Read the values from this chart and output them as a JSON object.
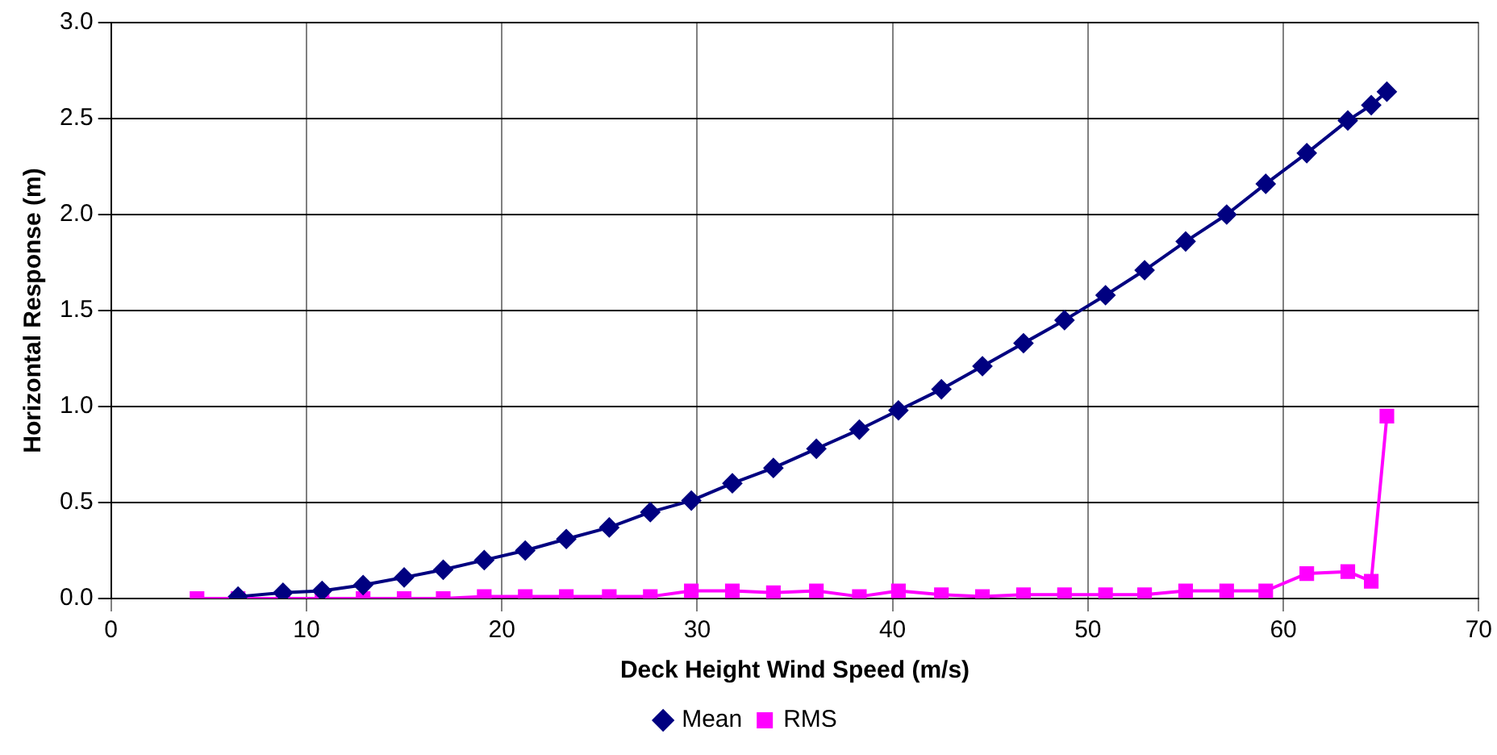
{
  "chart_data": {
    "type": "line",
    "xlabel": "Deck Height Wind Speed (m/s)",
    "ylabel": "Horizontal Response (m)",
    "xlim": [
      0,
      70
    ],
    "xticks": [
      0,
      10,
      20,
      30,
      40,
      50,
      60,
      70
    ],
    "ylim": [
      0,
      3
    ],
    "yticks": [
      {
        "value": 0,
        "label": "0.0"
      },
      {
        "value": 0.5,
        "label": "0.5"
      },
      {
        "value": 1,
        "label": "1.0"
      },
      {
        "value": 1.5,
        "label": "1.5"
      },
      {
        "value": 2,
        "label": "2.0"
      },
      {
        "value": 2.5,
        "label": "2.5"
      },
      {
        "value": 3,
        "label": "3.0"
      }
    ],
    "grid": true,
    "legend": "bottom",
    "line_style": "solid",
    "series": [
      {
        "name": "Mean",
        "color": "#000080",
        "marker": "diamond",
        "x": [
          6.5,
          8.8,
          10.8,
          12.9,
          15.0,
          17.0,
          19.1,
          21.2,
          23.3,
          25.5,
          27.6,
          29.7,
          31.8,
          33.9,
          36.1,
          38.3,
          40.3,
          42.5,
          44.6,
          46.7,
          48.8,
          50.9,
          52.9,
          55.0,
          57.1,
          59.1,
          61.2,
          63.3,
          64.5,
          65.3
        ],
        "values": [
          0.01,
          0.03,
          0.04,
          0.07,
          0.11,
          0.15,
          0.2,
          0.25,
          0.31,
          0.37,
          0.45,
          0.51,
          0.6,
          0.68,
          0.78,
          0.88,
          0.98,
          1.09,
          1.21,
          1.33,
          1.45,
          1.58,
          1.71,
          1.86,
          2.0,
          2.16,
          2.32,
          2.49,
          2.57,
          2.64
        ]
      },
      {
        "name": "RMS",
        "color": "#ff00ff",
        "marker": "square",
        "x": [
          4.4,
          6.5,
          8.8,
          10.8,
          12.9,
          15.0,
          17.0,
          19.1,
          21.2,
          23.3,
          25.5,
          27.6,
          29.7,
          31.8,
          33.9,
          36.1,
          38.3,
          40.3,
          42.5,
          44.6,
          46.7,
          48.8,
          50.9,
          52.9,
          55.0,
          57.1,
          59.1,
          61.2,
          63.3,
          64.5,
          65.3
        ],
        "values": [
          0,
          0,
          0,
          0,
          0,
          0,
          0,
          0.01,
          0.01,
          0.01,
          0.01,
          0.01,
          0.04,
          0.04,
          0.03,
          0.04,
          0.01,
          0.04,
          0.02,
          0.01,
          0.02,
          0.02,
          0.02,
          0.02,
          0.04,
          0.04,
          0.04,
          0.13,
          0.14,
          0.09,
          0.95
        ]
      }
    ]
  }
}
